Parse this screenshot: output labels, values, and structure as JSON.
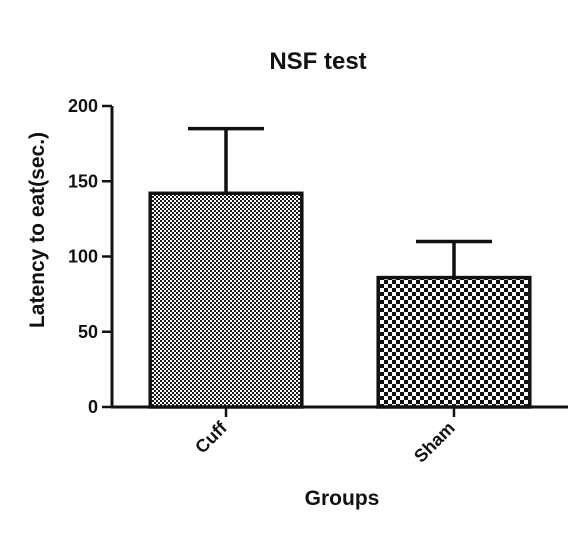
{
  "chart_data": {
    "type": "bar",
    "title": "NSF test",
    "xlabel": "Groups",
    "ylabel": "Latency to eat(sec.)",
    "categories": [
      "Cuff",
      "Sham"
    ],
    "values": [
      142,
      86
    ],
    "error_plus": [
      43,
      24
    ],
    "ylim": [
      0,
      200
    ],
    "yticks": [
      0,
      50,
      100,
      150,
      200
    ],
    "ytick_labels": [
      "0",
      "50",
      "100",
      "150",
      "200"
    ],
    "grid": false,
    "legend": "none",
    "bar_fill_patterns": [
      "fine-checkerboard",
      "coarse-checkerboard"
    ],
    "colors": {
      "bar_stroke": "#111111",
      "pattern_dark": "#1a1a1a",
      "pattern_light": "#ffffff"
    }
  }
}
